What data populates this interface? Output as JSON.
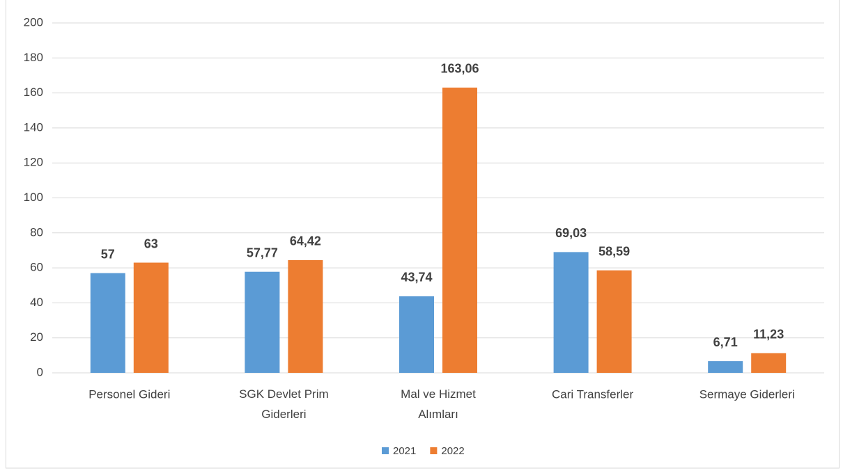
{
  "chart_data": {
    "type": "bar",
    "categories": [
      "Personel Gideri",
      "SGK Devlet Prim Giderleri",
      "Mal ve Hizmet Alımları",
      "Cari Transferler",
      "Sermaye Giderleri"
    ],
    "series": [
      {
        "name": "2021",
        "color": "#5b9bd5",
        "values": [
          57,
          57.77,
          43.74,
          69.03,
          6.71
        ],
        "value_labels": [
          "57",
          "57,77",
          "43,74",
          "69,03",
          "6,71"
        ]
      },
      {
        "name": "2022",
        "color": "#ed7d31",
        "values": [
          63,
          64.42,
          163.06,
          58.59,
          11.23
        ],
        "value_labels": [
          "63",
          "64,42",
          "163,06",
          "58,59",
          "11,23"
        ]
      }
    ],
    "ylim": [
      0,
      200
    ],
    "yticks": [
      0,
      20,
      40,
      60,
      80,
      100,
      120,
      140,
      160,
      180,
      200
    ],
    "grid": true,
    "legend": "bottom"
  }
}
